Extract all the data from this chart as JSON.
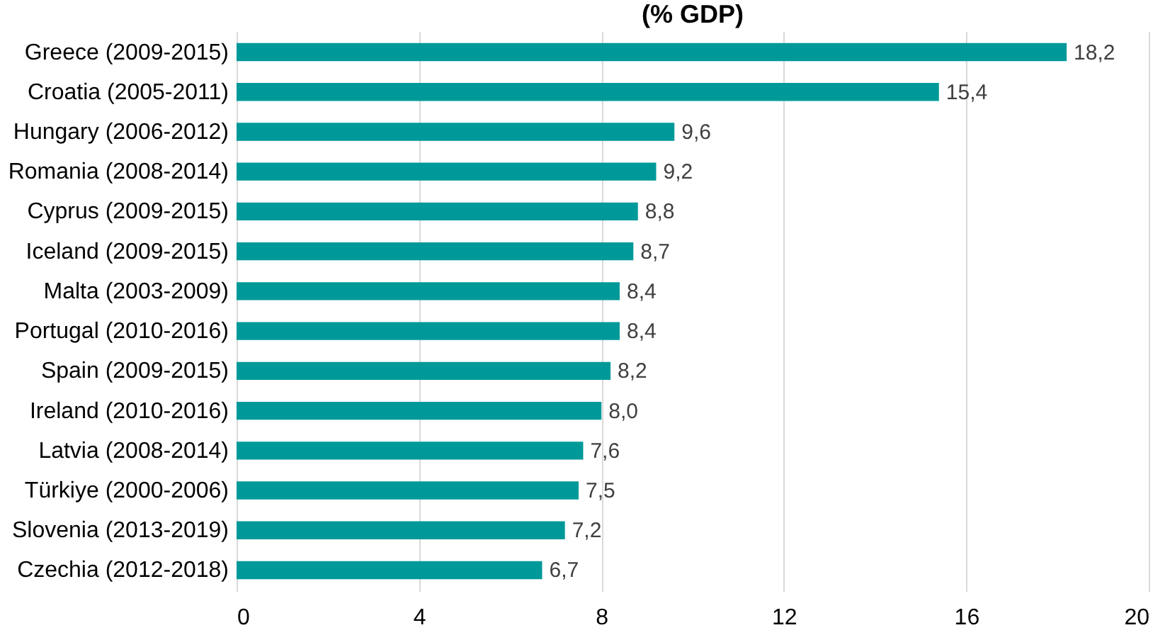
{
  "chart_data": {
    "type": "bar",
    "orientation": "horizontal",
    "title": "(% GDP)",
    "categories": [
      "Greece (2009-2015)",
      "Croatia (2005-2011)",
      "Hungary (2006-2012)",
      "Romania (2008-2014)",
      "Cyprus (2009-2015)",
      "Iceland (2009-2015)",
      "Malta (2003-2009)",
      "Portugal (2010-2016)",
      "Spain (2009-2015)",
      "Ireland (2010-2016)",
      "Latvia (2008-2014)",
      "Türkiye (2000-2006)",
      "Slovenia (2013-2019)",
      "Czechia (2012-2018)"
    ],
    "values": [
      18.2,
      15.4,
      9.6,
      9.2,
      8.8,
      8.7,
      8.4,
      8.4,
      8.2,
      8.0,
      7.6,
      7.5,
      7.2,
      6.7
    ],
    "value_labels": [
      "18,2",
      "15,4",
      "9,6",
      "9,2",
      "8,8",
      "8,7",
      "8,4",
      "8,4",
      "8,2",
      "8,0",
      "7,6",
      "7,5",
      "7,2",
      "6,7"
    ],
    "color": "#009999",
    "xlim": [
      0,
      20
    ],
    "xticks": [
      0,
      4,
      8,
      12,
      16,
      20
    ],
    "grid": "x"
  }
}
